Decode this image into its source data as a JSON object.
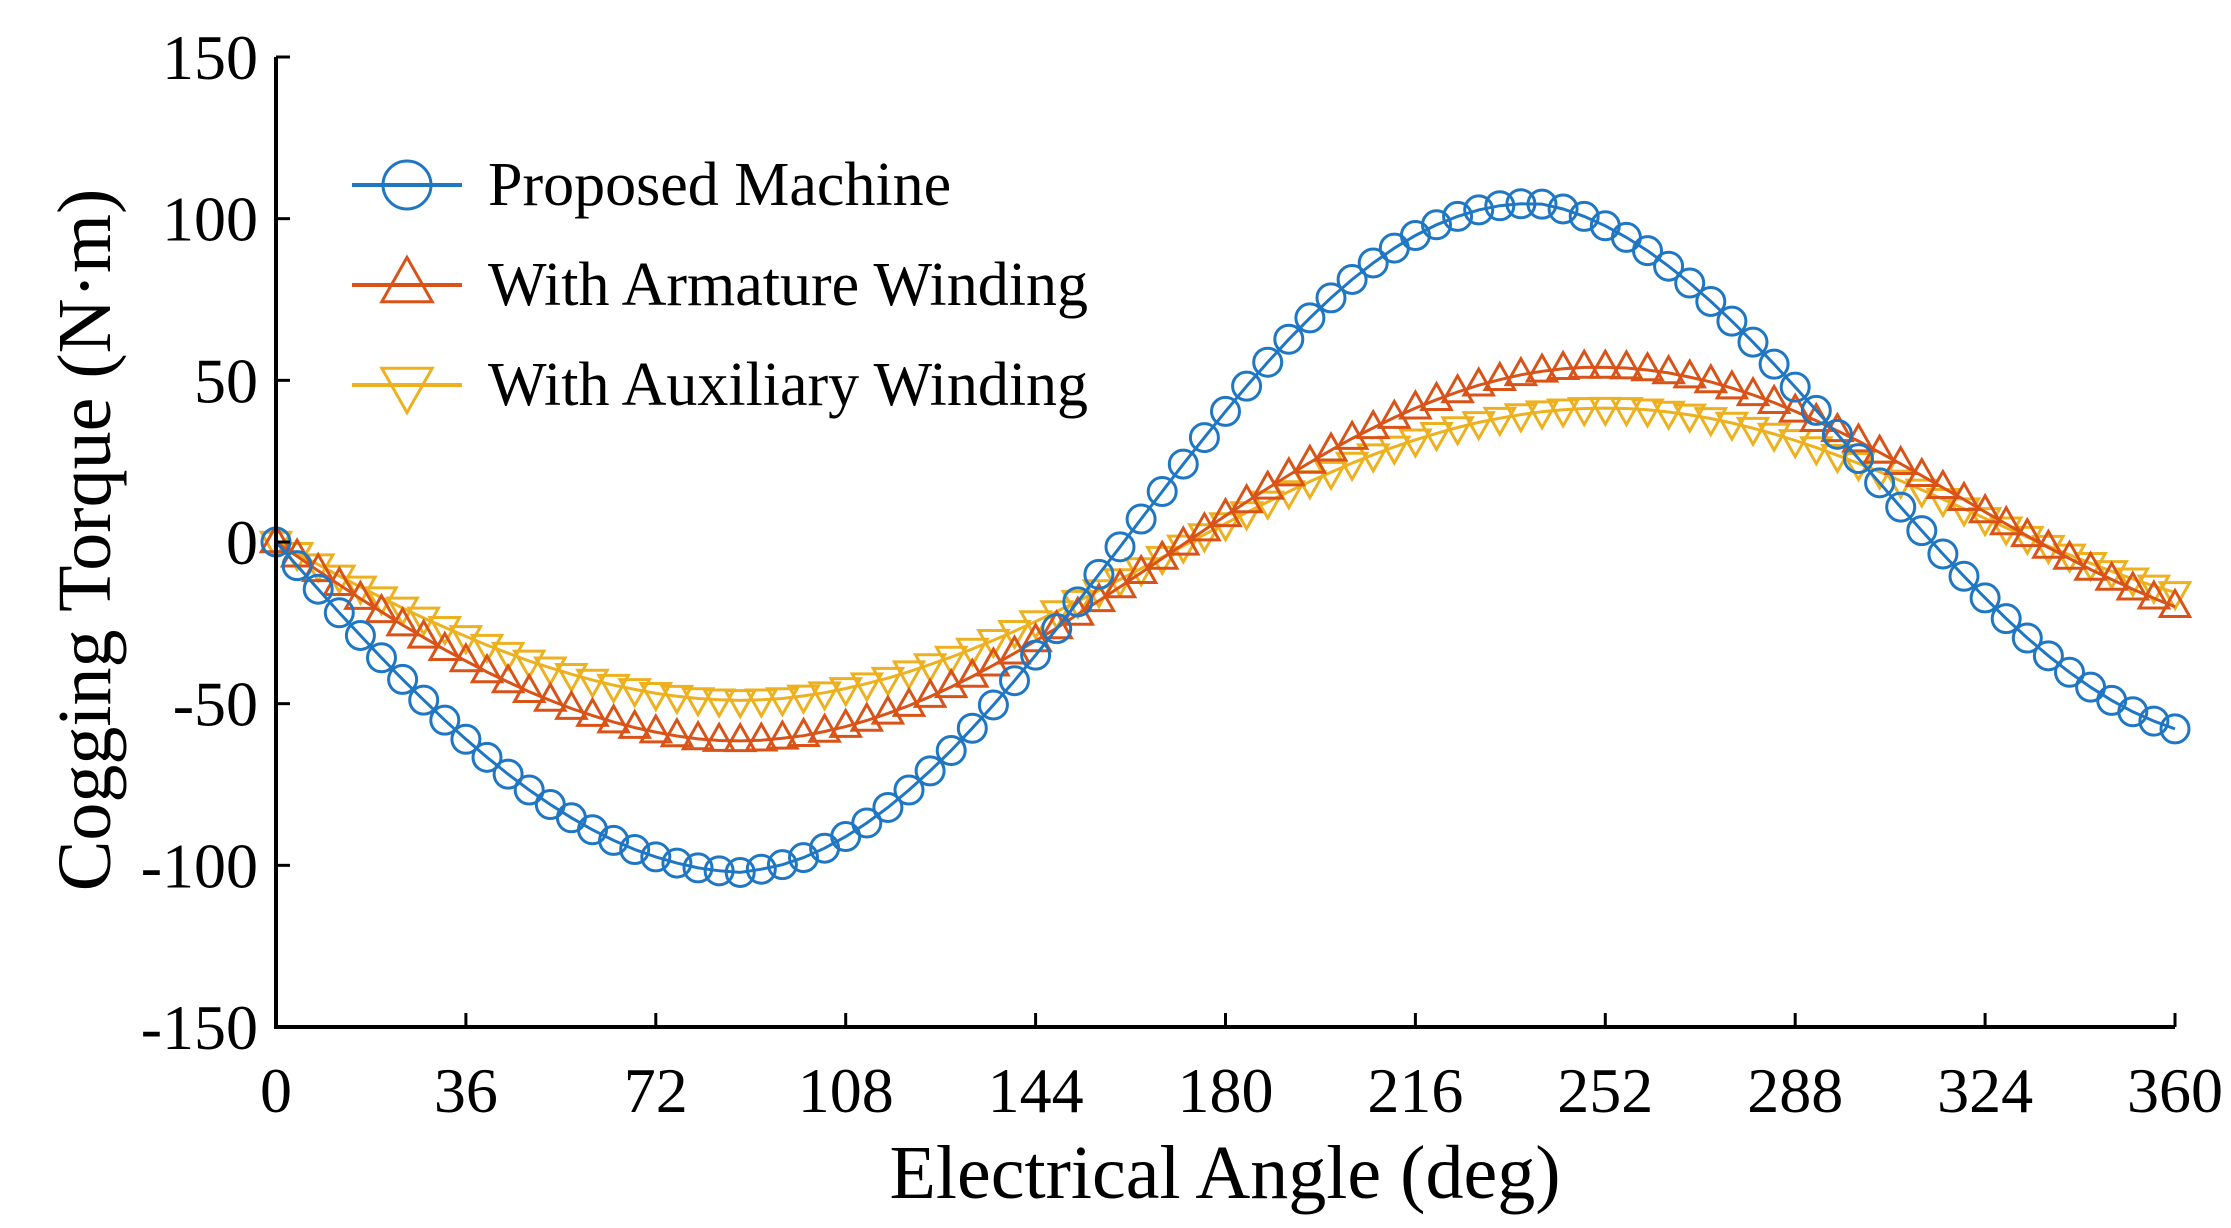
{
  "chart_data": {
    "type": "line",
    "title": "",
    "xlabel": "Electrical Angle (deg)",
    "ylabel": "Cogging Torque (N·m)",
    "xlim": [
      0,
      360
    ],
    "ylim": [
      -150,
      150
    ],
    "xticks": [
      0,
      36,
      72,
      108,
      144,
      180,
      216,
      252,
      288,
      324,
      360
    ],
    "yticks": [
      150,
      100,
      50,
      0,
      -50,
      -100,
      -150
    ],
    "xtick_labels": [
      "0",
      "36",
      "72",
      "108",
      "144",
      "180",
      "216",
      "252",
      "288",
      "324",
      "360"
    ],
    "ytick_labels": [
      "150",
      "100",
      "50",
      "0",
      "-50",
      "-100",
      "-150"
    ],
    "grid": false,
    "legend_position": "top-left",
    "x": [
      0,
      4,
      8,
      12,
      16,
      20,
      24,
      28,
      32,
      36,
      40,
      44,
      48,
      52,
      56,
      60,
      64,
      68,
      72,
      76,
      80,
      84,
      88,
      92,
      96,
      100,
      104,
      108,
      112,
      116,
      120,
      124,
      128,
      132,
      136,
      140,
      144,
      148,
      152,
      156,
      160,
      164,
      168,
      172,
      176,
      180,
      184,
      188,
      192,
      196,
      200,
      204,
      208,
      212,
      216,
      220,
      224,
      228,
      232,
      236,
      240,
      244,
      248,
      252,
      256,
      260,
      264,
      268,
      272,
      276,
      280,
      284,
      288,
      292,
      296,
      300,
      304,
      308,
      312,
      316,
      320,
      324,
      328,
      332,
      336,
      340,
      344,
      348,
      352,
      356,
      360
    ],
    "series": [
      {
        "name": "Proposed Machine",
        "color": "#1f77c4",
        "marker": "circle",
        "values": [
          0,
          -7.3,
          -14.6,
          -21.9,
          -28.9,
          -35.8,
          -42.5,
          -48.9,
          -55.1,
          -61.0,
          -66.6,
          -71.8,
          -76.7,
          -81.2,
          -85.3,
          -89.0,
          -92.3,
          -95.1,
          -97.4,
          -99.3,
          -100.8,
          -101.7,
          -102.2,
          -101.2,
          -99.8,
          -97.6,
          -94.7,
          -91.1,
          -86.9,
          -82.1,
          -76.7,
          -70.8,
          -64.5,
          -57.6,
          -50.4,
          -42.9,
          -35.0,
          -26.8,
          -18.5,
          -10.0,
          -1.5,
          7.1,
          15.6,
          24.1,
          32.3,
          40.4,
          48.2,
          55.6,
          62.7,
          69.3,
          75.5,
          81.2,
          86.3,
          90.9,
          94.8,
          98.1,
          100.7,
          102.7,
          104.0,
          104.6,
          104.5,
          103.0,
          100.7,
          97.8,
          94.2,
          90.1,
          85.3,
          80.1,
          74.4,
          68.3,
          61.8,
          55.0,
          47.9,
          40.7,
          33.3,
          25.8,
          18.3,
          10.8,
          3.5,
          -3.7,
          -10.6,
          -17.3,
          -23.7,
          -29.7,
          -35.2,
          -40.3,
          -44.9,
          -49.0,
          -52.5,
          -55.4,
          -57.8
        ]
      },
      {
        "name": "With Armature Winding",
        "color": "#d95319",
        "marker": "triangle-up",
        "values": [
          0,
          -4.4,
          -8.9,
          -13.2,
          -17.5,
          -21.6,
          -25.7,
          -29.5,
          -33.3,
          -36.8,
          -40.2,
          -43.3,
          -46.3,
          -49.0,
          -51.5,
          -53.7,
          -55.7,
          -57.4,
          -58.8,
          -60.0,
          -60.9,
          -61.4,
          -61.5,
          -61.3,
          -60.7,
          -59.9,
          -58.6,
          -57.1,
          -55.2,
          -53.0,
          -50.6,
          -47.8,
          -44.8,
          -41.6,
          -38.1,
          -34.4,
          -30.6,
          -26.6,
          -22.4,
          -18.2,
          -13.9,
          -9.5,
          -5.1,
          -0.7,
          3.7,
          8.1,
          12.4,
          16.6,
          20.7,
          24.6,
          28.4,
          32.0,
          35.3,
          38.5,
          41.4,
          44.0,
          46.4,
          48.5,
          50.2,
          51.7,
          52.8,
          53.6,
          54.0,
          54.0,
          53.8,
          53.2,
          52.3,
          51.0,
          49.5,
          47.6,
          45.5,
          43.1,
          40.4,
          37.5,
          34.4,
          31.2,
          27.7,
          24.2,
          20.5,
          16.8,
          13.1,
          9.3,
          5.6,
          1.9,
          -1.7,
          -5.1,
          -8.5,
          -11.6,
          -14.6,
          -17.4,
          -20.0
        ]
      },
      {
        "name": "With Auxiliary Winding",
        "color": "#edb120",
        "marker": "triangle-down",
        "values": [
          0,
          -3.5,
          -7.0,
          -10.5,
          -13.9,
          -17.2,
          -20.4,
          -23.5,
          -26.4,
          -29.2,
          -31.9,
          -34.4,
          -36.8,
          -38.9,
          -40.9,
          -42.7,
          -44.3,
          -45.6,
          -46.8,
          -47.7,
          -48.4,
          -48.8,
          -49.0,
          -48.8,
          -48.4,
          -47.6,
          -46.6,
          -45.3,
          -43.8,
          -42.1,
          -40.1,
          -37.9,
          -35.6,
          -33.1,
          -30.4,
          -27.6,
          -24.6,
          -21.5,
          -18.3,
          -15.0,
          -11.6,
          -8.2,
          -4.7,
          -1.2,
          2.3,
          5.7,
          9.1,
          12.4,
          15.6,
          18.7,
          21.6,
          24.4,
          27.0,
          29.4,
          31.6,
          33.6,
          35.4,
          37.0,
          38.3,
          39.4,
          40.3,
          40.9,
          41.3,
          41.4,
          41.3,
          40.9,
          40.2,
          39.3,
          38.2,
          36.8,
          35.2,
          33.4,
          31.4,
          29.2,
          26.8,
          24.3,
          21.7,
          18.9,
          16.1,
          13.2,
          10.3,
          7.3,
          4.4,
          1.5,
          -1.3,
          -4.0,
          -6.6,
          -9.1,
          -11.4,
          -13.6,
          -15.6
        ]
      }
    ]
  }
}
